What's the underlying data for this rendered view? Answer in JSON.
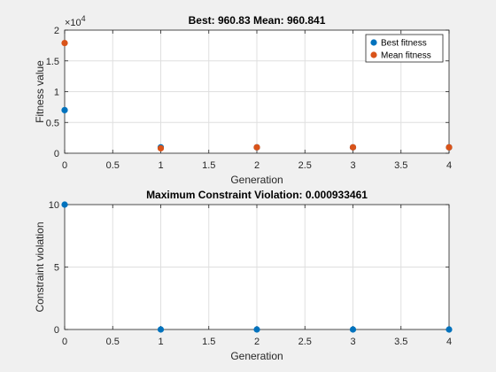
{
  "chart_data": [
    {
      "type": "scatter",
      "title": "Best: 960.83 Mean: 960.841",
      "xlabel": "Generation",
      "ylabel": "Fitness value",
      "xlim": [
        0,
        4
      ],
      "ylim": [
        0,
        20000
      ],
      "x_ticks": [
        "0",
        "0.5",
        "1",
        "1.5",
        "2",
        "2.5",
        "3",
        "3.5",
        "4"
      ],
      "y_ticks": [
        "0",
        "0.5",
        "1",
        "1.5",
        "2"
      ],
      "y_tick_values": [
        0,
        5000,
        10000,
        15000,
        20000
      ],
      "x_tick_values": [
        0,
        0.5,
        1,
        1.5,
        2,
        2.5,
        3,
        3.5,
        4
      ],
      "y_exponent_base": "×10",
      "y_exponent": "4",
      "grid": true,
      "legend_position": "top-right",
      "series": [
        {
          "name": "Best fitness",
          "color": "#0072bd",
          "points": [
            [
              0,
              7000
            ],
            [
              1,
              961
            ],
            [
              2,
              961
            ],
            [
              3,
              961
            ],
            [
              4,
              961
            ]
          ]
        },
        {
          "name": "Mean fitness",
          "color": "#d95319",
          "points": [
            [
              0,
              17900
            ],
            [
              1,
              800
            ],
            [
              2,
              961
            ],
            [
              3,
              961
            ],
            [
              4,
              961
            ]
          ]
        }
      ]
    },
    {
      "type": "scatter",
      "title": "Maximum Constraint Violation: 0.000933461",
      "xlabel": "Generation",
      "ylabel": "Constraint violation",
      "xlim": [
        0,
        4
      ],
      "ylim": [
        0,
        10
      ],
      "x_ticks": [
        "0",
        "0.5",
        "1",
        "1.5",
        "2",
        "2.5",
        "3",
        "3.5",
        "4"
      ],
      "x_tick_values": [
        0,
        0.5,
        1,
        1.5,
        2,
        2.5,
        3,
        3.5,
        4
      ],
      "y_ticks": [
        "0",
        "5",
        "10"
      ],
      "y_tick_values": [
        0,
        5,
        10
      ],
      "grid": true,
      "series": [
        {
          "color": "#0072bd",
          "points": [
            [
              0,
              10
            ],
            [
              1,
              0
            ],
            [
              2,
              0
            ],
            [
              3,
              0
            ],
            [
              4,
              0
            ]
          ]
        }
      ]
    }
  ]
}
